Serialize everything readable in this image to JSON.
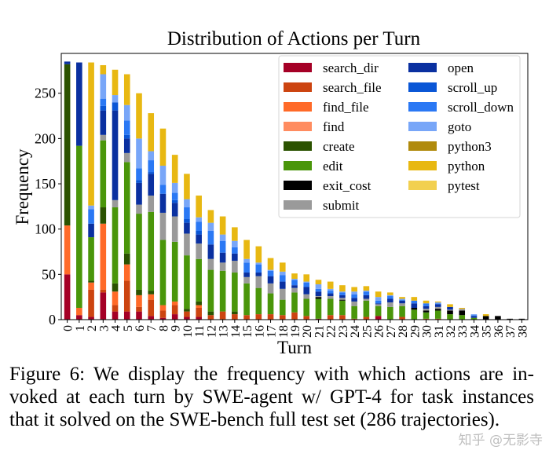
{
  "chart_data": {
    "type": "bar",
    "stacked": true,
    "title": "Distribution of Actions per Turn",
    "xlabel": "Turn",
    "ylabel": "Frequency",
    "ylim": [
      0,
      294
    ],
    "yticks": [
      0,
      50,
      100,
      150,
      200,
      250
    ],
    "grid": false,
    "legend_position": "top-right",
    "categories": [
      "0",
      "1",
      "2",
      "3",
      "4",
      "5",
      "6",
      "7",
      "8",
      "9",
      "10",
      "11",
      "12",
      "13",
      "14",
      "15",
      "16",
      "17",
      "18",
      "19",
      "20",
      "21",
      "22",
      "23",
      "24",
      "25",
      "26",
      "27",
      "28",
      "29",
      "30",
      "31",
      "32",
      "33",
      "34",
      "35",
      "36",
      "37",
      "38"
    ],
    "series": [
      {
        "name": "search_dir",
        "color": "#a50026",
        "values": [
          50,
          5,
          3,
          30,
          9,
          9,
          9,
          4,
          2,
          6,
          3,
          3,
          0,
          0,
          0,
          0,
          0,
          0,
          0,
          0,
          0,
          1,
          0,
          0,
          0,
          0,
          4,
          0,
          0,
          0,
          0,
          0,
          0,
          0,
          0,
          0,
          0,
          0,
          0
        ]
      },
      {
        "name": "search_file",
        "color": "#cc4410",
        "values": [
          0,
          0,
          30,
          3,
          7,
          34,
          5,
          18,
          8,
          10,
          6,
          10,
          5,
          9,
          6,
          5,
          6,
          6,
          5,
          8,
          4,
          0,
          5,
          5,
          1,
          3,
          0,
          0,
          3,
          0,
          1,
          1,
          0,
          0,
          0,
          0,
          0,
          0,
          0
        ]
      },
      {
        "name": "find_file",
        "color": "#ff6a28",
        "values": [
          54,
          8,
          8,
          73,
          15,
          18,
          13,
          6,
          6,
          4,
          0,
          3,
          0,
          0,
          0,
          0,
          0,
          0,
          0,
          0,
          0,
          0,
          0,
          0,
          0,
          0,
          0,
          0,
          0,
          0,
          0,
          0,
          0,
          0,
          0,
          0,
          0,
          0,
          0
        ]
      },
      {
        "name": "find",
        "color": "#ff8c60",
        "values": [
          0,
          0,
          0,
          0,
          0,
          0,
          0,
          0,
          0,
          0,
          0,
          0,
          0,
          0,
          0,
          0,
          0,
          0,
          0,
          0,
          0,
          0,
          0,
          0,
          0,
          0,
          0,
          0,
          0,
          0,
          0,
          0,
          0,
          0,
          0,
          0,
          0,
          0,
          0
        ]
      },
      {
        "name": "create",
        "color": "#2b5200",
        "values": [
          178,
          0,
          2,
          18,
          9,
          12,
          6,
          4,
          0,
          0,
          3,
          4,
          4,
          0,
          3,
          0,
          0,
          0,
          0,
          0,
          0,
          0,
          0,
          0,
          0,
          0,
          0,
          0,
          0,
          0,
          0,
          0,
          0,
          0,
          0,
          0,
          0,
          0,
          0
        ]
      },
      {
        "name": "edit",
        "color": "#4a960a",
        "values": [
          0,
          179,
          48,
          74,
          84,
          101,
          84,
          87,
          72,
          66,
          59,
          47,
          46,
          45,
          43,
          35,
          29,
          23,
          17,
          22,
          19,
          22,
          18,
          16,
          14,
          18,
          11,
          14,
          12,
          11,
          7,
          9,
          6,
          5,
          2,
          0,
          0,
          0,
          0
        ]
      },
      {
        "name": "exit_cost",
        "color": "#000000",
        "values": [
          0,
          0,
          0,
          0,
          0,
          0,
          0,
          0,
          0,
          0,
          0,
          0,
          0,
          0,
          0,
          0,
          0,
          0,
          0,
          0,
          0,
          2,
          0,
          1,
          0,
          0,
          0,
          0,
          0,
          2,
          2,
          2,
          4,
          5,
          0,
          4,
          4,
          1,
          1
        ]
      },
      {
        "name": "submit",
        "color": "#9a9a9a",
        "values": [
          0,
          0,
          0,
          6,
          8,
          10,
          10,
          18,
          30,
          28,
          24,
          17,
          12,
          9,
          13,
          7,
          13,
          11,
          12,
          5,
          5,
          1,
          3,
          2,
          5,
          2,
          2,
          5,
          3,
          0,
          2,
          2,
          1,
          2,
          0,
          0,
          0,
          0,
          0
        ]
      },
      {
        "name": "open",
        "color": "#0a30a0",
        "values": [
          3,
          92,
          15,
          27,
          99,
          16,
          24,
          24,
          21,
          15,
          12,
          10,
          16,
          11,
          8,
          5,
          4,
          8,
          8,
          3,
          8,
          5,
          3,
          3,
          4,
          4,
          1,
          4,
          3,
          5,
          3,
          3,
          3,
          0,
          2,
          0,
          0,
          0,
          0
        ]
      },
      {
        "name": "scroll_up",
        "color": "#0a56d6",
        "values": [
          0,
          0,
          0,
          5,
          9,
          4,
          3,
          2,
          0,
          3,
          4,
          4,
          0,
          0,
          0,
          0,
          0,
          0,
          0,
          0,
          0,
          0,
          0,
          0,
          0,
          0,
          0,
          0,
          0,
          0,
          0,
          0,
          0,
          0,
          0,
          0,
          0,
          0,
          0
        ]
      },
      {
        "name": "scroll_down",
        "color": "#2a78f4",
        "values": [
          0,
          0,
          16,
          8,
          0,
          16,
          13,
          13,
          10,
          8,
          13,
          10,
          15,
          13,
          7,
          11,
          9,
          6,
          7,
          6,
          5,
          3,
          3,
          3,
          4,
          4,
          3,
          3,
          1,
          3,
          3,
          1,
          0,
          0,
          1,
          0,
          0,
          0,
          0
        ]
      },
      {
        "name": "goto",
        "color": "#78a6f8",
        "values": [
          0,
          0,
          4,
          27,
          8,
          17,
          33,
          10,
          21,
          11,
          9,
          5,
          9,
          7,
          7,
          4,
          2,
          1,
          4,
          1,
          1,
          5,
          2,
          1,
          3,
          1,
          4,
          1,
          1,
          0,
          0,
          1,
          0,
          0,
          1,
          0,
          0,
          0,
          0
        ]
      },
      {
        "name": "python3",
        "color": "#b08a0c",
        "values": [
          0,
          0,
          0,
          0,
          0,
          0,
          0,
          0,
          0,
          0,
          0,
          0,
          0,
          0,
          0,
          0,
          0,
          0,
          0,
          0,
          0,
          0,
          0,
          0,
          0,
          0,
          0,
          0,
          0,
          0,
          0,
          0,
          0,
          0,
          0,
          0,
          0,
          0,
          0
        ]
      },
      {
        "name": "python",
        "color": "#e8b812",
        "values": [
          0,
          0,
          158,
          10,
          28,
          34,
          50,
          42,
          41,
          31,
          28,
          24,
          14,
          20,
          15,
          21,
          18,
          13,
          10,
          6,
          8,
          5,
          8,
          7,
          5,
          5,
          6,
          3,
          2,
          4,
          3,
          1,
          3,
          1,
          0,
          2,
          0,
          0,
          0
        ]
      },
      {
        "name": "pytest",
        "color": "#f2d050",
        "values": [
          0,
          0,
          0,
          0,
          0,
          0,
          0,
          0,
          0,
          0,
          0,
          0,
          0,
          0,
          0,
          0,
          0,
          0,
          0,
          0,
          0,
          0,
          0,
          0,
          0,
          0,
          0,
          0,
          0,
          0,
          0,
          0,
          0,
          0,
          0,
          0,
          0,
          0,
          0
        ]
      }
    ]
  },
  "caption": {
    "lines": [
      "Figure 6: We display the frequency with which actions are in-",
      "voked at each turn by SWE-agent w/ GPT-4 for task instances",
      "that it solved on the SWE-bench full test set (286 trajectories)."
    ]
  },
  "watermark": "知乎 @无影寺"
}
